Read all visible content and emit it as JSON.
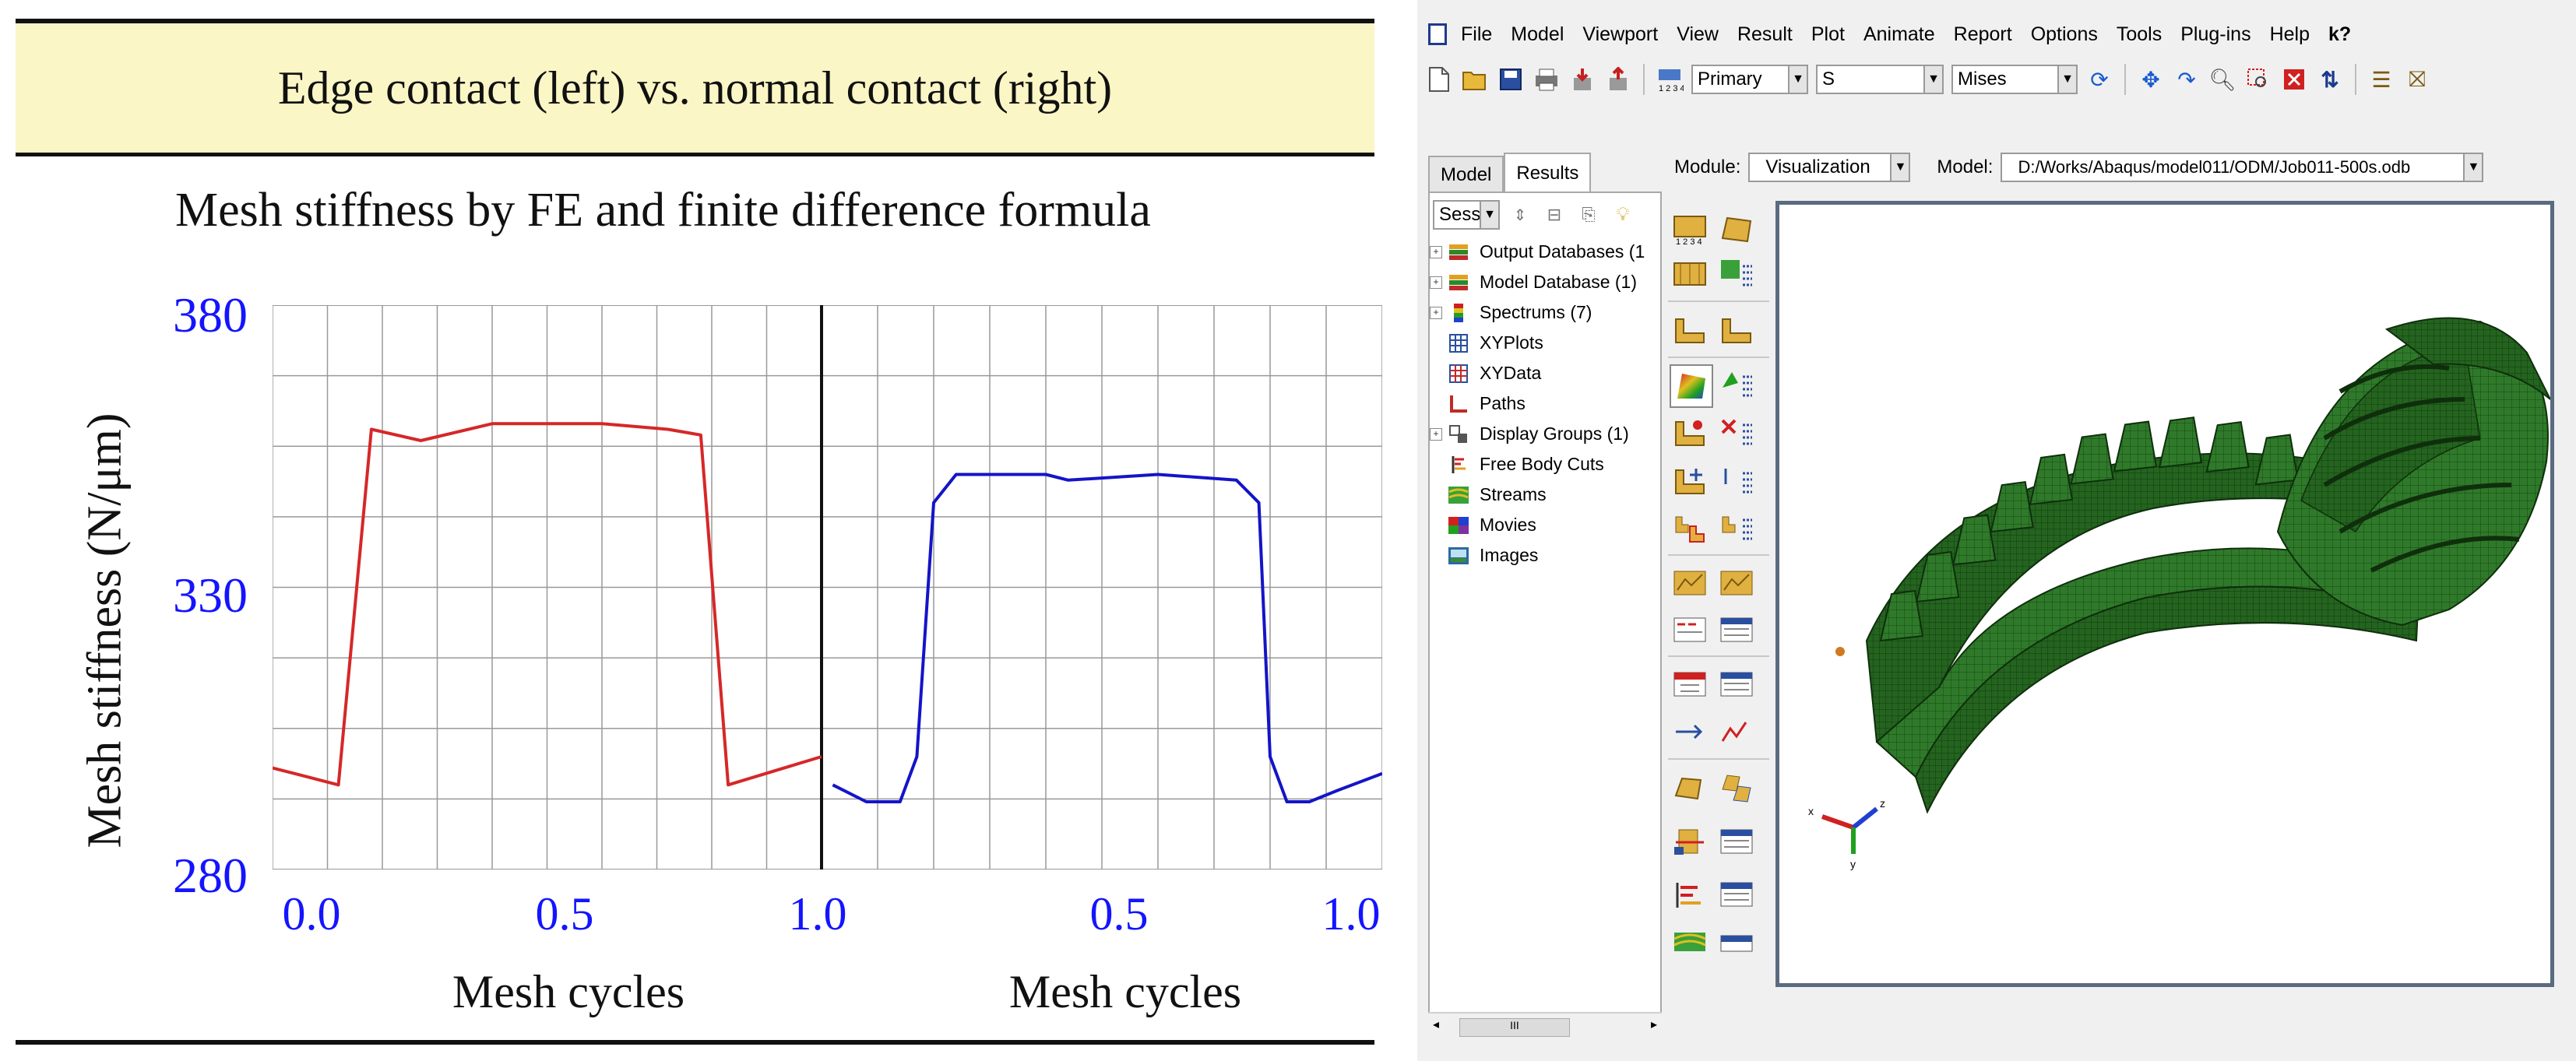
{
  "slide": {
    "title": "Edge contact (left) vs. normal contact (right)",
    "chart_title": "Mesh stiffness by FE and finite difference formula",
    "ylabel": "Mesh stiffness (N/μm)",
    "yticks": [
      "380",
      "330",
      "280"
    ],
    "xticks_left": [
      "0.0",
      "0.5",
      "1.0"
    ],
    "xticks_right": [
      "0.5",
      "1.0"
    ],
    "xlabel_left": "Mesh cycles",
    "xlabel_right": "Mesh cycles"
  },
  "chart_data": {
    "type": "line",
    "title": "Mesh stiffness by FE and finite difference formula",
    "ylabel": "Mesh stiffness (N/μm)",
    "ylim": [
      280,
      380
    ],
    "grid": true,
    "panels": [
      {
        "xlabel": "Mesh cycles",
        "xlim": [
          0,
          1
        ],
        "color": "#d62728",
        "x": [
          0.0,
          0.12,
          0.18,
          0.27,
          0.4,
          0.6,
          0.72,
          0.78,
          0.83,
          1.0
        ],
        "y": [
          298,
          295,
          358,
          356,
          359,
          359,
          358,
          357,
          295,
          300
        ]
      },
      {
        "xlabel": "Mesh cycles",
        "xlim": [
          0,
          1
        ],
        "color": "#1414c8",
        "x": [
          0.02,
          0.08,
          0.14,
          0.17,
          0.2,
          0.24,
          0.4,
          0.44,
          0.6,
          0.74,
          0.78,
          0.8,
          0.83,
          0.87,
          0.92,
          1.0
        ],
        "y": [
          295,
          292,
          292,
          300,
          345,
          350,
          350,
          349,
          350,
          349,
          345,
          300,
          292,
          292,
          294,
          297
        ]
      }
    ]
  },
  "abaqus": {
    "menu": [
      "File",
      "Model",
      "Viewport",
      "View",
      "Result",
      "Plot",
      "Animate",
      "Report",
      "Options",
      "Tools",
      "Plug-ins",
      "Help",
      "k?"
    ],
    "toolbar": {
      "step_label": "Primary",
      "variable": "S",
      "invariant": "Mises"
    },
    "tabs": [
      "Model",
      "Results"
    ],
    "session_label": "Sessio",
    "tree": [
      {
        "label": "Output Databases (1",
        "expand": true,
        "icon": "database-icon"
      },
      {
        "label": "Model Database (1)",
        "expand": true,
        "icon": "database-icon"
      },
      {
        "label": "Spectrums (7)",
        "expand": true,
        "icon": "spectrum-icon"
      },
      {
        "label": "XYPlots",
        "expand": false,
        "icon": "grid-icon"
      },
      {
        "label": "XYData",
        "expand": false,
        "icon": "grid-icon"
      },
      {
        "label": "Paths",
        "expand": false,
        "icon": "path-icon"
      },
      {
        "label": "Display Groups (1)",
        "expand": true,
        "icon": "display-group-icon"
      },
      {
        "label": "Free Body Cuts",
        "expand": false,
        "icon": "cut-icon"
      },
      {
        "label": "Streams",
        "expand": false,
        "icon": "stream-icon"
      },
      {
        "label": "Movies",
        "expand": false,
        "icon": "movie-icon"
      },
      {
        "label": "Images",
        "expand": false,
        "icon": "image-icon"
      }
    ],
    "module_label": "Module:",
    "module_value": "Visualization",
    "model_label": "Model:",
    "model_value": "D:/Works/Abaqus/model011/ODM/Job011-500s.odb",
    "scroll_thumb": "III",
    "triad": [
      "x",
      "z",
      "y"
    ],
    "colors": {
      "gear": "#2f7a2a",
      "gear_dark": "#1d4f1a",
      "gear_light": "#4f9a46"
    }
  }
}
